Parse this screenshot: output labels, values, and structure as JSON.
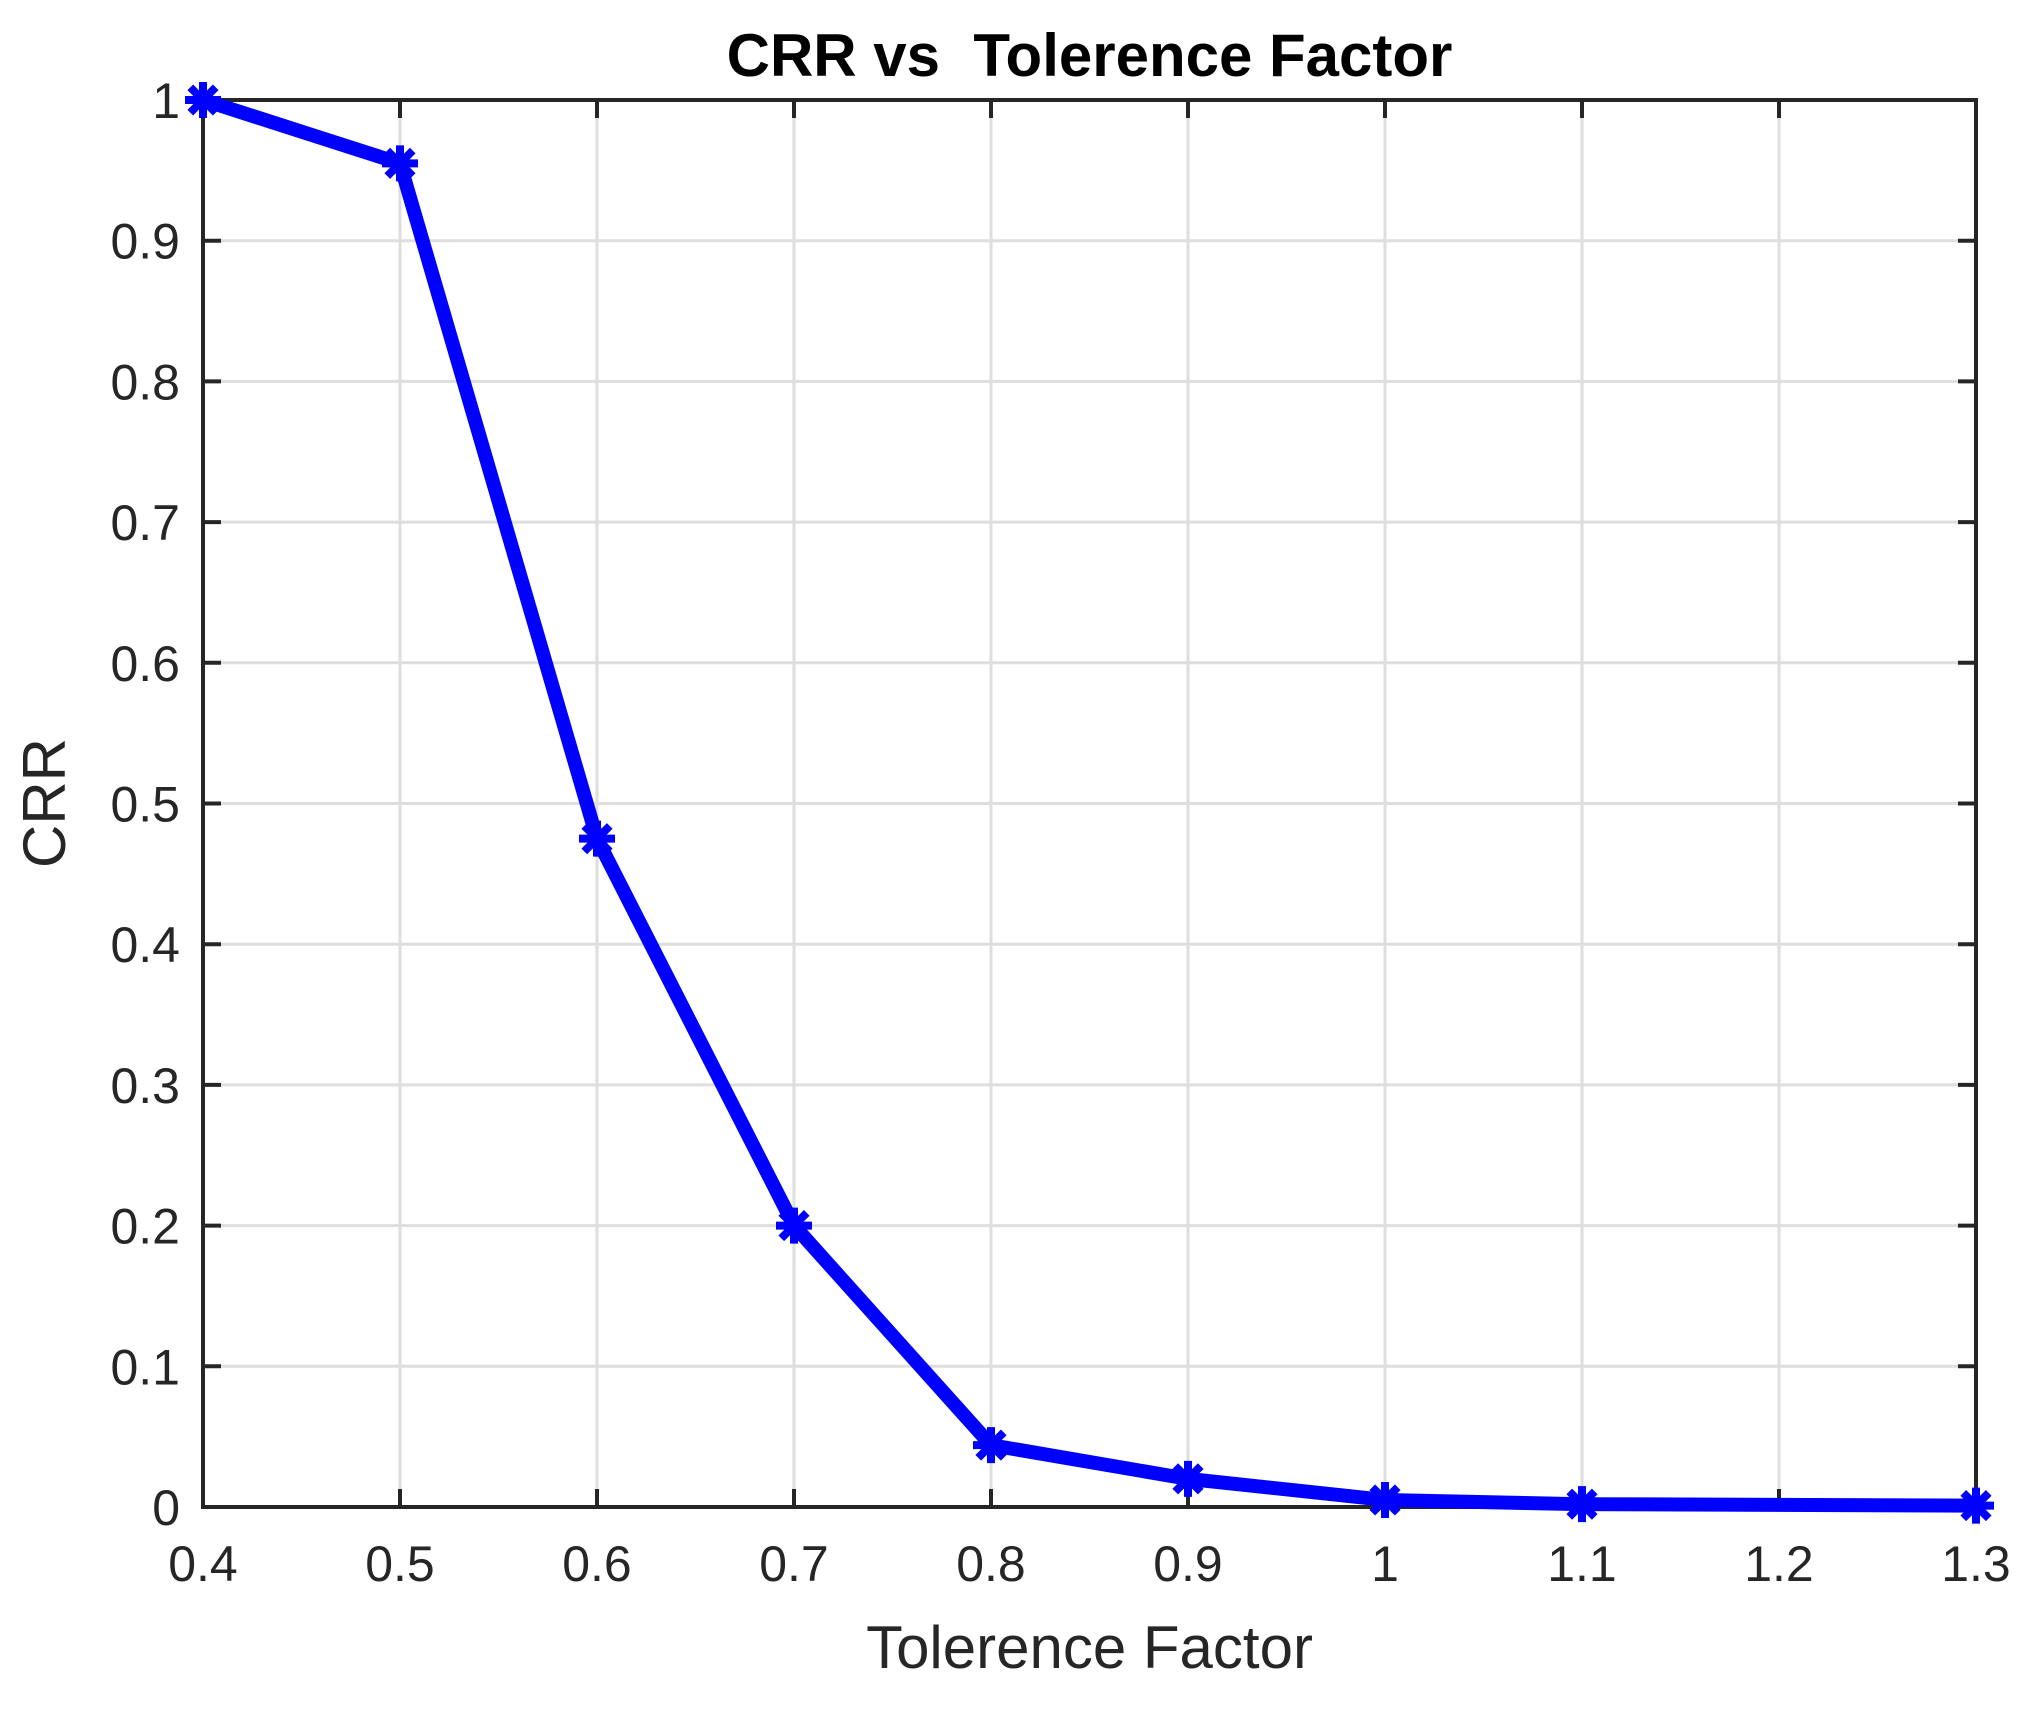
{
  "chart_data": {
    "type": "line",
    "title": "CRR vs  Tolerence Factor",
    "xlabel": "Tolerence Factor",
    "ylabel": "CRR",
    "x": [
      0.4,
      0.5,
      0.6,
      0.7,
      0.8,
      0.9,
      1.0,
      1.1,
      1.3
    ],
    "y": [
      1.0,
      0.955,
      0.475,
      0.2,
      0.044,
      0.02,
      0.005,
      0.002,
      0.001
    ],
    "xlim": [
      0.4,
      1.3
    ],
    "ylim": [
      0,
      1
    ],
    "xticks": [
      0.4,
      0.5,
      0.6,
      0.7,
      0.8,
      0.9,
      1.0,
      1.1,
      1.2,
      1.3
    ],
    "xtick_labels": [
      "0.4",
      "0.5",
      "0.6",
      "0.7",
      "0.8",
      "0.9",
      "1",
      "1.1",
      "1.2",
      "1.3"
    ],
    "yticks": [
      0,
      0.1,
      0.2,
      0.3,
      0.4,
      0.5,
      0.6,
      0.7,
      0.8,
      0.9,
      1.0
    ],
    "ytick_labels": [
      "0",
      "0.1",
      "0.2",
      "0.3",
      "0.4",
      "0.5",
      "0.6",
      "0.7",
      "0.8",
      "0.9",
      "1"
    ],
    "grid": true,
    "legend": null,
    "marker": "asterisk",
    "colors": {
      "line": "#0000FF",
      "grid": "#DEDEDE",
      "axis": "#262626",
      "tick_text": "#262626",
      "title_text": "#000000",
      "background": "#FFFFFF"
    }
  }
}
